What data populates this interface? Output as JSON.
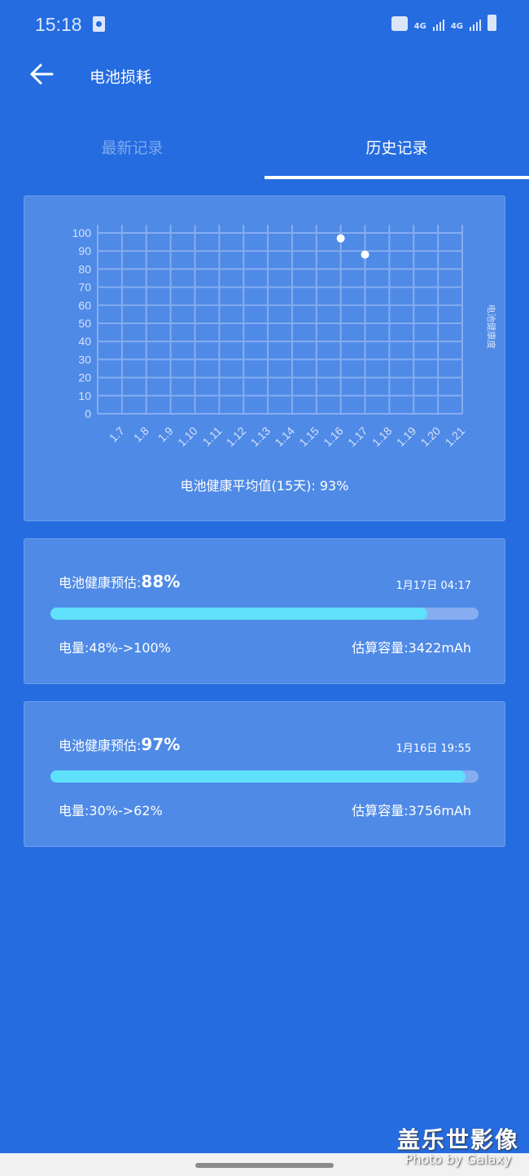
{
  "status_bar": {
    "time": "15:18",
    "net1": "4G",
    "net2": "4G"
  },
  "header": {
    "title": "电池损耗"
  },
  "tabs": [
    {
      "label": "最新记录",
      "active": false
    },
    {
      "label": "历史记录",
      "active": true
    }
  ],
  "chart_data": {
    "type": "scatter",
    "ylabel": "电池健康度",
    "x_ticks": [
      "1.7",
      "1.8",
      "1.9",
      "1.10",
      "1.11",
      "1.12",
      "1.13",
      "1.14",
      "1.15",
      "1.16",
      "1.17",
      "1.18",
      "1.19",
      "1.20",
      "1.21"
    ],
    "y_ticks": [
      0,
      10,
      20,
      30,
      40,
      50,
      60,
      70,
      80,
      90,
      100
    ],
    "ylim": [
      0,
      100
    ],
    "grid": true,
    "points": [
      {
        "x": "1.16",
        "y": 97
      },
      {
        "x": "1.17",
        "y": 88
      }
    ],
    "point_color": "#ffffff"
  },
  "average_text": "电池健康平均值(15天): 93%",
  "records": [
    {
      "label": "电池健康预估:",
      "value": "88%",
      "percent": 88,
      "date": "1月17日 04:17",
      "charge": "电量:48%->100%",
      "capacity": "估算容量:3422mAh"
    },
    {
      "label": "电池健康预估:",
      "value": "97%",
      "percent": 97,
      "date": "1月16日 19:55",
      "charge": "电量:30%->62%",
      "capacity": "估算容量:3756mAh"
    }
  ],
  "watermark": {
    "line1": "盖乐世影像",
    "line2": "Photo by Galaxy"
  },
  "colors": {
    "background": "#256ce0",
    "card": "#4f8ae6",
    "bar_fill": "#5fe1fb",
    "bar_track": "#86adf0"
  }
}
